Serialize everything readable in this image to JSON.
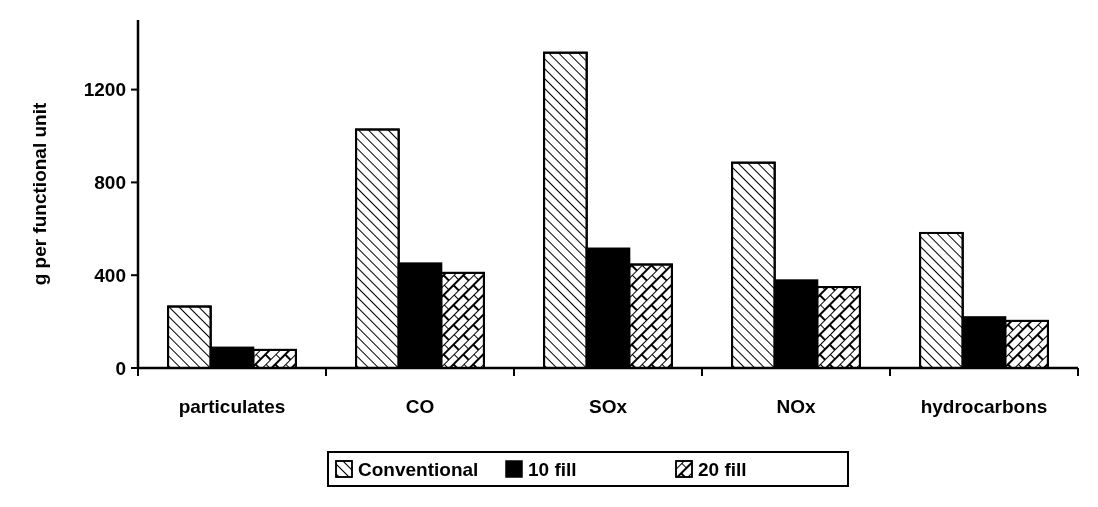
{
  "chart_data": {
    "type": "bar",
    "ylabel": "g per functional unit",
    "categories": [
      "particulates",
      "CO",
      "SOx",
      "NOx",
      "hydrocarbons"
    ],
    "series": [
      {
        "name": "Conventional",
        "color": "#ffffff",
        "values": [
          265,
          1028,
          1359,
          885,
          582
        ]
      },
      {
        "name": "10 fill",
        "color": "#000000",
        "values": [
          88,
          451,
          515,
          378,
          219
        ]
      },
      {
        "name": "20 fill",
        "color": "#ffffff",
        "values": [
          78,
          410,
          446,
          349,
          203
        ]
      }
    ],
    "ylim": [
      0,
      1500
    ],
    "yticks": [
      0,
      400,
      800,
      1200
    ],
    "grid": false,
    "legend": "bottom"
  }
}
